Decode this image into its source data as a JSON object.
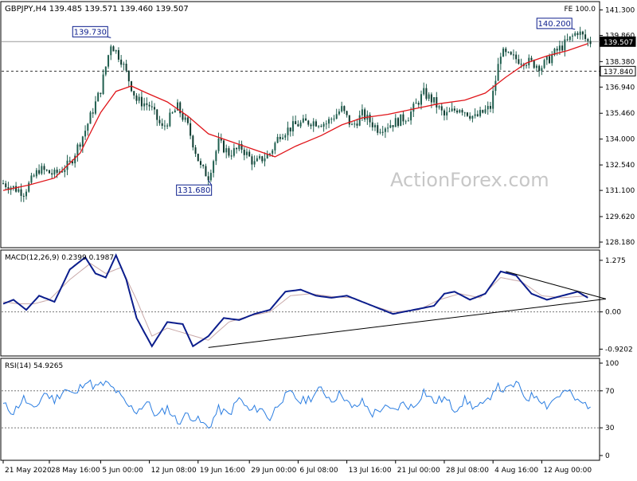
{
  "header": {
    "symbol_line": "GBPJPY,H4  139.485 139.571 139.460 139.507",
    "fe_label": "FE 100.0"
  },
  "watermark": "ActionForex.com",
  "colors": {
    "candle": "#1f5f4f",
    "ma": "#e0151a",
    "macd": "#0b1d8c",
    "signal": "#c8a8a8",
    "rsi": "#2a7de1",
    "grid": "#777777",
    "callout": "#0b1d8c"
  },
  "chart_data": [
    {
      "panel": "price",
      "type": "candlestick",
      "ylim": [
        128.0,
        141.5
      ],
      "y_ticks": [
        "141.300",
        "139.860",
        "138.380",
        "136.940",
        "135.460",
        "134.000",
        "132.540",
        "131.100",
        "129.620",
        "128.180"
      ],
      "y_tick_values": [
        141.3,
        139.86,
        138.38,
        136.94,
        135.46,
        134.0,
        132.54,
        131.1,
        129.62,
        128.18
      ],
      "last_price": "139.507",
      "levels": [
        {
          "label": "137.840",
          "value": 137.84,
          "style": "dashed"
        },
        {
          "label": "139.507",
          "value": 139.507,
          "style": "solid"
        }
      ],
      "annotations": [
        {
          "label": "139.730",
          "value": 139.73,
          "bar": 42
        },
        {
          "label": "131.680",
          "value": 131.68,
          "bar": 80
        },
        {
          "label": "140.200",
          "value": 140.2,
          "bar": 223
        }
      ],
      "close_path": [
        [
          0,
          131.5
        ],
        [
          8,
          131.0
        ],
        [
          14,
          132.3
        ],
        [
          20,
          132.0
        ],
        [
          26,
          132.6
        ],
        [
          32,
          134.5
        ],
        [
          38,
          136.8
        ],
        [
          42,
          139.4
        ],
        [
          46,
          138.5
        ],
        [
          52,
          136.2
        ],
        [
          57,
          135.9
        ],
        [
          62,
          134.6
        ],
        [
          68,
          135.8
        ],
        [
          72,
          134.7
        ],
        [
          77,
          132.4
        ],
        [
          80,
          131.9
        ],
        [
          84,
          133.8
        ],
        [
          88,
          133.2
        ],
        [
          93,
          133.5
        ],
        [
          98,
          132.6
        ],
        [
          104,
          133.2
        ],
        [
          108,
          134.3
        ],
        [
          114,
          134.8
        ],
        [
          120,
          135.0
        ],
        [
          126,
          134.9
        ],
        [
          132,
          135.7
        ],
        [
          136,
          134.7
        ],
        [
          140,
          135.4
        ],
        [
          146,
          134.6
        ],
        [
          152,
          134.9
        ],
        [
          158,
          135.3
        ],
        [
          164,
          136.6
        ],
        [
          168,
          136.1
        ],
        [
          172,
          135.3
        ],
        [
          178,
          135.8
        ],
        [
          184,
          135.2
        ],
        [
          190,
          135.8
        ],
        [
          194,
          138.9
        ],
        [
          198,
          138.6
        ],
        [
          204,
          138.4
        ],
        [
          210,
          138.1
        ],
        [
          216,
          139.0
        ],
        [
          220,
          139.5
        ],
        [
          224,
          140.1
        ],
        [
          228,
          139.5
        ]
      ],
      "ma_path": [
        [
          0,
          131.1
        ],
        [
          10,
          131.4
        ],
        [
          20,
          131.8
        ],
        [
          30,
          133.2
        ],
        [
          38,
          135.5
        ],
        [
          44,
          136.7
        ],
        [
          50,
          137.0
        ],
        [
          56,
          136.6
        ],
        [
          64,
          136.1
        ],
        [
          72,
          135.3
        ],
        [
          80,
          134.3
        ],
        [
          90,
          133.8
        ],
        [
          100,
          133.3
        ],
        [
          106,
          133.0
        ],
        [
          114,
          133.6
        ],
        [
          124,
          134.2
        ],
        [
          132,
          134.8
        ],
        [
          140,
          135.2
        ],
        [
          150,
          135.4
        ],
        [
          160,
          135.7
        ],
        [
          170,
          136.0
        ],
        [
          180,
          136.2
        ],
        [
          188,
          136.6
        ],
        [
          196,
          137.5
        ],
        [
          204,
          138.3
        ],
        [
          212,
          138.7
        ],
        [
          220,
          139.0
        ],
        [
          228,
          139.4
        ]
      ]
    },
    {
      "panel": "macd",
      "type": "line",
      "label": "MACD(12,26,9) 0.2399 0.1987",
      "y_ticks": [
        "1.275",
        "0.00",
        "-0.9202"
      ],
      "y_tick_values": [
        1.275,
        0.0,
        -0.9202
      ],
      "ylim": [
        -1.05,
        1.45
      ],
      "macd_path": [
        [
          0,
          0.2
        ],
        [
          4,
          0.3
        ],
        [
          9,
          0.05
        ],
        [
          14,
          0.4
        ],
        [
          20,
          0.25
        ],
        [
          26,
          1.05
        ],
        [
          32,
          1.35
        ],
        [
          36,
          0.95
        ],
        [
          40,
          0.85
        ],
        [
          44,
          1.4
        ],
        [
          48,
          0.8
        ],
        [
          52,
          -0.15
        ],
        [
          58,
          -0.85
        ],
        [
          64,
          -0.25
        ],
        [
          70,
          -0.3
        ],
        [
          74,
          -0.85
        ],
        [
          80,
          -0.6
        ],
        [
          86,
          -0.15
        ],
        [
          92,
          -0.2
        ],
        [
          98,
          -0.05
        ],
        [
          104,
          0.05
        ],
        [
          110,
          0.5
        ],
        [
          116,
          0.55
        ],
        [
          122,
          0.4
        ],
        [
          128,
          0.35
        ],
        [
          134,
          0.4
        ],
        [
          140,
          0.25
        ],
        [
          146,
          0.1
        ],
        [
          152,
          -0.05
        ],
        [
          160,
          0.05
        ],
        [
          168,
          0.15
        ],
        [
          172,
          0.45
        ],
        [
          176,
          0.5
        ],
        [
          182,
          0.3
        ],
        [
          188,
          0.45
        ],
        [
          194,
          1.0
        ],
        [
          200,
          0.9
        ],
        [
          206,
          0.45
        ],
        [
          212,
          0.3
        ],
        [
          218,
          0.4
        ],
        [
          224,
          0.5
        ],
        [
          228,
          0.35
        ]
      ],
      "signal_path": [
        [
          0,
          0.25
        ],
        [
          6,
          0.2
        ],
        [
          12,
          0.2
        ],
        [
          18,
          0.3
        ],
        [
          26,
          0.8
        ],
        [
          34,
          1.2
        ],
        [
          40,
          0.95
        ],
        [
          46,
          1.1
        ],
        [
          52,
          0.3
        ],
        [
          58,
          -0.6
        ],
        [
          64,
          -0.4
        ],
        [
          72,
          -0.55
        ],
        [
          80,
          -0.7
        ],
        [
          88,
          -0.25
        ],
        [
          96,
          -0.1
        ],
        [
          104,
          0.0
        ],
        [
          112,
          0.4
        ],
        [
          120,
          0.45
        ],
        [
          128,
          0.38
        ],
        [
          136,
          0.35
        ],
        [
          144,
          0.15
        ],
        [
          152,
          0.0
        ],
        [
          162,
          0.05
        ],
        [
          170,
          0.3
        ],
        [
          178,
          0.45
        ],
        [
          186,
          0.35
        ],
        [
          194,
          0.85
        ],
        [
          202,
          0.75
        ],
        [
          210,
          0.4
        ],
        [
          218,
          0.35
        ],
        [
          228,
          0.4
        ]
      ],
      "trendlines": [
        {
          "from": [
            80,
            -0.88
          ],
          "to": [
            235,
            0.32
          ]
        },
        {
          "from": [
            196,
            1.0
          ],
          "to": [
            235,
            0.32
          ]
        }
      ]
    },
    {
      "panel": "rsi",
      "type": "line",
      "label": "RSI(14) 54.9265",
      "y_ticks": [
        "100",
        "70",
        "30",
        "0"
      ],
      "y_tick_values": [
        100,
        70,
        30,
        0
      ],
      "ylim": [
        0,
        100
      ],
      "rsi_path": [
        [
          0,
          55
        ],
        [
          4,
          47
        ],
        [
          8,
          62
        ],
        [
          12,
          48
        ],
        [
          16,
          68
        ],
        [
          20,
          60
        ],
        [
          24,
          72
        ],
        [
          28,
          65
        ],
        [
          32,
          82
        ],
        [
          36,
          74
        ],
        [
          40,
          78
        ],
        [
          44,
          70
        ],
        [
          48,
          55
        ],
        [
          52,
          48
        ],
        [
          56,
          58
        ],
        [
          60,
          42
        ],
        [
          64,
          52
        ],
        [
          68,
          36
        ],
        [
          72,
          45
        ],
        [
          76,
          38
        ],
        [
          80,
          30
        ],
        [
          84,
          50
        ],
        [
          88,
          44
        ],
        [
          92,
          62
        ],
        [
          96,
          48
        ],
        [
          100,
          52
        ],
        [
          104,
          40
        ],
        [
          108,
          60
        ],
        [
          112,
          67
        ],
        [
          116,
          58
        ],
        [
          120,
          63
        ],
        [
          124,
          72
        ],
        [
          128,
          60
        ],
        [
          132,
          68
        ],
        [
          136,
          50
        ],
        [
          140,
          58
        ],
        [
          144,
          45
        ],
        [
          148,
          52
        ],
        [
          152,
          48
        ],
        [
          156,
          56
        ],
        [
          160,
          52
        ],
        [
          164,
          70
        ],
        [
          168,
          58
        ],
        [
          172,
          62
        ],
        [
          176,
          50
        ],
        [
          180,
          60
        ],
        [
          184,
          52
        ],
        [
          188,
          55
        ],
        [
          192,
          75
        ],
        [
          196,
          70
        ],
        [
          200,
          78
        ],
        [
          204,
          62
        ],
        [
          208,
          66
        ],
        [
          212,
          54
        ],
        [
          216,
          64
        ],
        [
          220,
          70
        ],
        [
          224,
          58
        ],
        [
          228,
          55
        ]
      ]
    }
  ],
  "x_axis": {
    "labels": [
      "21 May 2020",
      "28 May 16:00",
      "5 Jun 00:00",
      "12 Jun 08:00",
      "19 Jun 16:00",
      "29 Jun 00:00",
      "6 Jul 08:00",
      "13 Jul 16:00",
      "21 Jul 00:00",
      "28 Jul 08:00",
      "4 Aug 16:00",
      "12 Aug 00:00"
    ],
    "label_bars": [
      0,
      18,
      38,
      57,
      76,
      96,
      115,
      134,
      153,
      172,
      191,
      210
    ],
    "bar_count": 232
  }
}
